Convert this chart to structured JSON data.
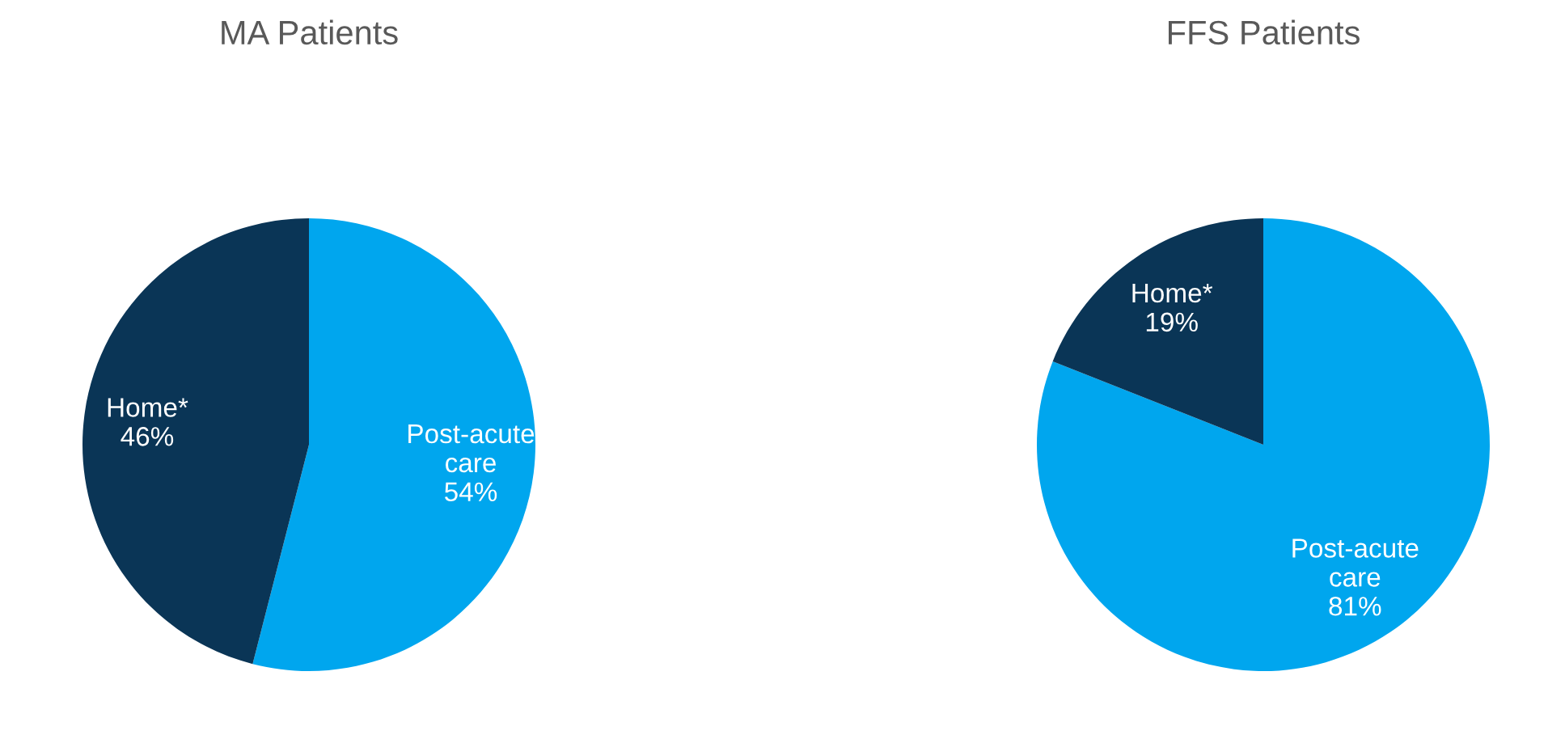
{
  "chart_data": [
    {
      "type": "pie",
      "title": "MA Patients",
      "categories": [
        "Post-acute\ncare",
        "Home*"
      ],
      "values": [
        54,
        46
      ],
      "value_labels": [
        "54%",
        "46%"
      ],
      "colors": [
        "#00a6ee",
        "#0a3556"
      ],
      "legend": false
    },
    {
      "type": "pie",
      "title": "FFS Patients",
      "categories": [
        "Post-acute\ncare",
        "Home*"
      ],
      "values": [
        81,
        19
      ],
      "value_labels": [
        "81%",
        "19%"
      ],
      "colors": [
        "#00a6ee",
        "#0a3556"
      ],
      "legend": false
    }
  ]
}
